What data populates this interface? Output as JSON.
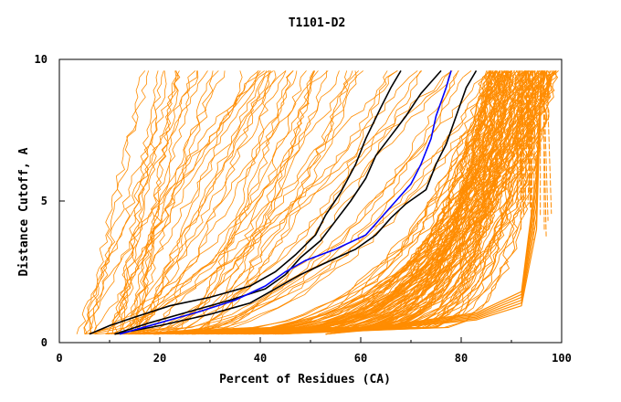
{
  "chart_data": {
    "type": "line",
    "title": "T1101-D2",
    "xlabel": "Percent of Residues (CA)",
    "ylabel": "Distance Cutoff, A",
    "xlim": [
      0,
      100
    ],
    "ylim": [
      0,
      10
    ],
    "x_ticks": [
      "0",
      "20",
      "40",
      "60",
      "80",
      "100"
    ],
    "y_ticks": [
      "0",
      "5",
      "10"
    ],
    "grid": false,
    "colors": {
      "other_models": "#ff8c00",
      "highlight_black": "#000000",
      "highlight_blue": "#0000ff",
      "axis": "#000000"
    },
    "series": [
      {
        "color": "black",
        "points": [
          [
            6,
            0.3
          ],
          [
            10,
            0.6
          ],
          [
            15,
            0.9
          ],
          [
            22,
            1.3
          ],
          [
            30,
            1.6
          ],
          [
            38,
            2.0
          ],
          [
            43,
            2.5
          ],
          [
            47,
            3.1
          ],
          [
            51,
            3.8
          ],
          [
            53,
            4.5
          ],
          [
            56,
            5.3
          ],
          [
            59,
            6.3
          ],
          [
            61,
            7.2
          ],
          [
            64,
            8.3
          ],
          [
            66,
            9.0
          ],
          [
            68,
            9.6
          ]
        ]
      },
      {
        "color": "black",
        "points": [
          [
            11,
            0.3
          ],
          [
            18,
            0.7
          ],
          [
            26,
            1.1
          ],
          [
            34,
            1.5
          ],
          [
            41,
            1.9
          ],
          [
            45,
            2.4
          ],
          [
            48,
            3.0
          ],
          [
            52,
            3.6
          ],
          [
            55,
            4.3
          ],
          [
            58,
            5.0
          ],
          [
            61,
            5.8
          ],
          [
            63,
            6.6
          ],
          [
            66,
            7.3
          ],
          [
            69,
            8.0
          ],
          [
            72,
            8.8
          ],
          [
            76,
            9.6
          ]
        ]
      },
      {
        "color": "black",
        "points": [
          [
            11,
            0.3
          ],
          [
            20,
            0.6
          ],
          [
            30,
            1.0
          ],
          [
            38,
            1.4
          ],
          [
            43,
            1.9
          ],
          [
            48,
            2.4
          ],
          [
            54,
            2.9
          ],
          [
            59,
            3.3
          ],
          [
            63,
            3.8
          ],
          [
            66,
            4.4
          ],
          [
            69,
            4.9
          ],
          [
            73,
            5.4
          ],
          [
            75,
            6.3
          ],
          [
            77,
            7.0
          ],
          [
            79,
            8.0
          ],
          [
            81,
            9.0
          ],
          [
            83,
            9.6
          ]
        ]
      },
      {
        "color": "blue",
        "points": [
          [
            12,
            0.3
          ],
          [
            20,
            0.7
          ],
          [
            28,
            1.1
          ],
          [
            35,
            1.5
          ],
          [
            41,
            2.0
          ],
          [
            45,
            2.5
          ],
          [
            49,
            2.9
          ],
          [
            55,
            3.3
          ],
          [
            61,
            3.8
          ],
          [
            64,
            4.4
          ],
          [
            67,
            5.0
          ],
          [
            70,
            5.6
          ],
          [
            72,
            6.3
          ],
          [
            74,
            7.2
          ],
          [
            75,
            8.0
          ],
          [
            77,
            9.0
          ],
          [
            78,
            9.6
          ]
        ]
      }
    ]
  }
}
